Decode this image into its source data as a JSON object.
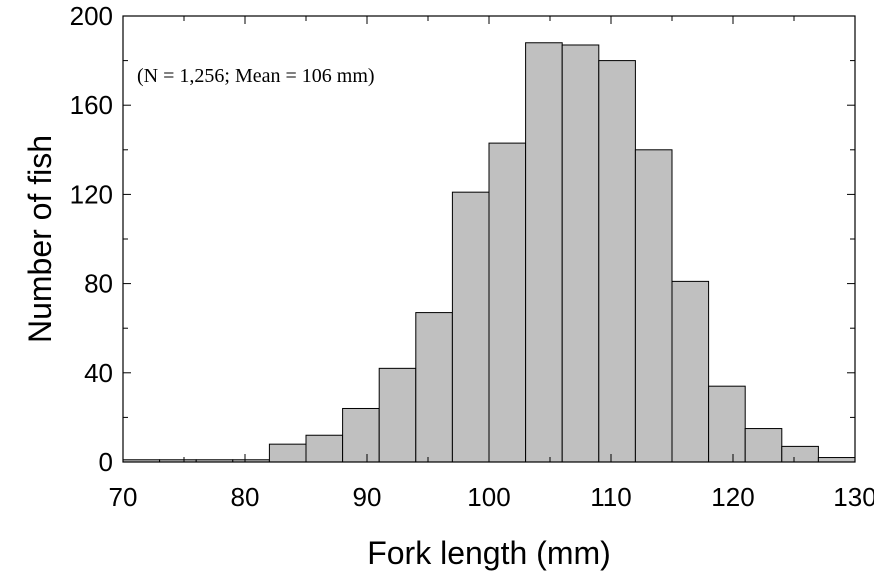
{
  "chart_data": {
    "type": "bar",
    "subtype": "histogram",
    "annotation": "(N = 1,256; Mean = 106 mm)",
    "xlabel": "Fork length (mm)",
    "ylabel": "Number of fish",
    "xlim": [
      70,
      130
    ],
    "ylim": [
      0,
      200
    ],
    "x_ticks": [
      "70",
      "80",
      "90",
      "100",
      "110",
      "120",
      "130"
    ],
    "y_ticks": [
      "0",
      "40",
      "80",
      "120",
      "160",
      "200"
    ],
    "bin_width": 3,
    "bins": [
      {
        "start": 70,
        "end": 73,
        "value": 1
      },
      {
        "start": 73,
        "end": 76,
        "value": 1
      },
      {
        "start": 76,
        "end": 79,
        "value": 1
      },
      {
        "start": 79,
        "end": 82,
        "value": 1
      },
      {
        "start": 82,
        "end": 85,
        "value": 8
      },
      {
        "start": 85,
        "end": 88,
        "value": 12
      },
      {
        "start": 88,
        "end": 91,
        "value": 24
      },
      {
        "start": 91,
        "end": 94,
        "value": 42
      },
      {
        "start": 94,
        "end": 97,
        "value": 67
      },
      {
        "start": 97,
        "end": 100,
        "value": 121
      },
      {
        "start": 100,
        "end": 103,
        "value": 143
      },
      {
        "start": 103,
        "end": 106,
        "value": 188
      },
      {
        "start": 106,
        "end": 109,
        "value": 187
      },
      {
        "start": 109,
        "end": 112,
        "value": 180
      },
      {
        "start": 112,
        "end": 115,
        "value": 140
      },
      {
        "start": 115,
        "end": 118,
        "value": 81
      },
      {
        "start": 118,
        "end": 121,
        "value": 34
      },
      {
        "start": 121,
        "end": 124,
        "value": 15
      },
      {
        "start": 124,
        "end": 127,
        "value": 7
      },
      {
        "start": 127,
        "end": 130,
        "value": 2
      }
    ],
    "grid": false,
    "bar_color": "#c0c0c0",
    "bar_edge_color": "#000000"
  }
}
